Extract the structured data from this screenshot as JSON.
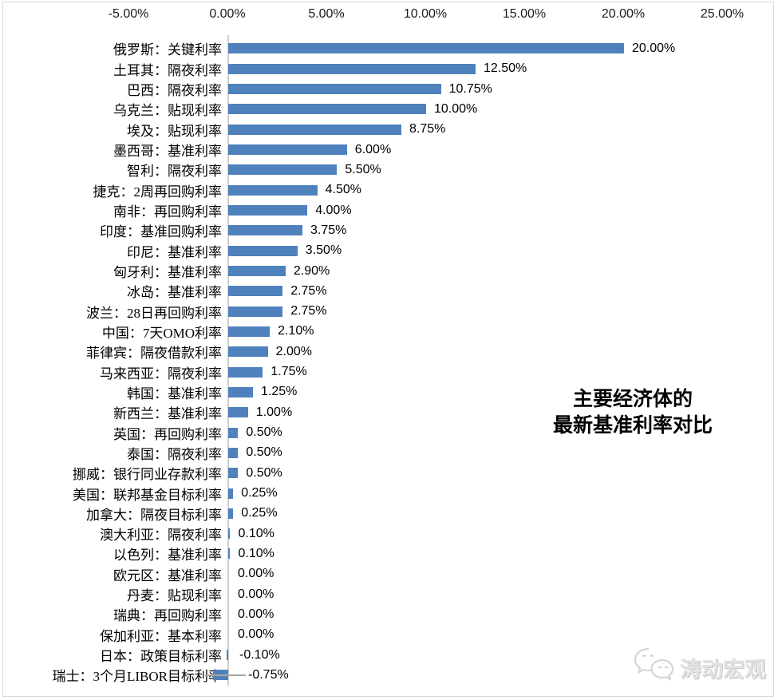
{
  "chart_data": {
    "type": "bar",
    "orientation": "horizontal",
    "title_lines": [
      "主要经济体的",
      "最新基准利率对比"
    ],
    "categories": [
      "俄罗斯：关键利率",
      "土耳其：隔夜利率",
      "巴西：隔夜利率",
      "乌克兰：贴现利率",
      "埃及：贴现利率",
      "墨西哥：基准利率",
      "智利：隔夜利率",
      "捷克：2周再回购利率",
      "南非：再回购利率",
      "印度：基准回购利率",
      "印尼：基准利率",
      "匈牙利：基准利率",
      "冰岛：基准利率",
      "波兰：28日再回购利率",
      "中国：7天OMO利率",
      "菲律宾：隔夜借款利率",
      "马来西亚：隔夜利率",
      "韩国：基准利率",
      "新西兰：基准利率",
      "英国：再回购利率",
      "泰国：隔夜利率",
      "挪威：银行同业存款利率",
      "美国：联邦基金目标利率",
      "加拿大：隔夜目标利率",
      "澳大利亚：隔夜利率",
      "以色列：基准利率",
      "欧元区：基准利率",
      "丹麦：贴现利率",
      "瑞典：再回购利率",
      "保加利亚：基本利率",
      "日本：政策目标利率",
      "瑞士：3个月LIBOR目标利率"
    ],
    "values": [
      20.0,
      12.5,
      10.75,
      10.0,
      8.75,
      6.0,
      5.5,
      4.5,
      4.0,
      3.75,
      3.5,
      2.9,
      2.75,
      2.75,
      2.1,
      2.0,
      1.75,
      1.25,
      1.0,
      0.5,
      0.5,
      0.5,
      0.25,
      0.25,
      0.1,
      0.1,
      0.0,
      0.0,
      0.0,
      0.0,
      -0.1,
      -0.75
    ],
    "value_labels": [
      "20.00%",
      "12.50%",
      "10.75%",
      "10.00%",
      "8.75%",
      "6.00%",
      "5.50%",
      "4.50%",
      "4.00%",
      "3.75%",
      "3.50%",
      "2.90%",
      "2.75%",
      "2.75%",
      "2.10%",
      "2.00%",
      "1.75%",
      "1.25%",
      "1.00%",
      "0.50%",
      "0.50%",
      "0.50%",
      "0.25%",
      "0.25%",
      "0.10%",
      "0.10%",
      "0.00%",
      "0.00%",
      "0.00%",
      "0.00%",
      "-0.10%",
      "-0.75%"
    ],
    "x_axis": {
      "position": "top",
      "min": -5,
      "max": 25,
      "tick_step": 5,
      "ticks": [
        "-5.00%",
        "0.00%",
        "5.00%",
        "10.00%",
        "15.00%",
        "20.00%",
        "25.00%"
      ],
      "tick_values": [
        -5,
        0,
        5,
        10,
        15,
        20,
        25
      ]
    },
    "grid": false,
    "legend": false,
    "bar_color": "#4f81bd",
    "axis_line_color": "#cfcfcf",
    "leader_line_color": "#a6a6a6",
    "leader_line_category": "瑞士：3个月LIBOR目标利率"
  },
  "watermark": {
    "icon": "wechat-icon",
    "text": "涛动宏观",
    "color": "#e3e3e3"
  }
}
